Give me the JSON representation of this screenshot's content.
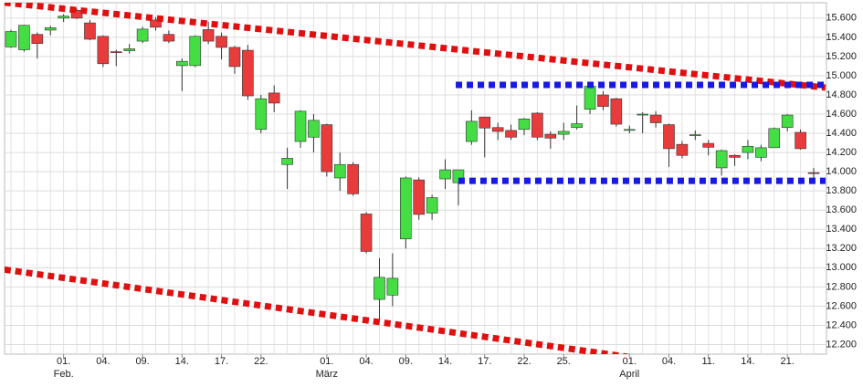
{
  "chart_data": {
    "type": "candlestick",
    "categories": [
      null,
      null,
      null,
      null,
      "01.",
      null,
      null,
      "04.",
      null,
      null,
      "09.",
      null,
      null,
      "14.",
      null,
      null,
      "17.",
      null,
      null,
      "22.",
      null,
      null,
      null,
      null,
      "01.",
      null,
      null,
      "04.",
      null,
      null,
      "09.",
      null,
      null,
      "14.",
      null,
      null,
      "17.",
      null,
      null,
      "22.",
      null,
      null,
      "25.",
      null,
      null,
      null,
      null,
      "01.",
      null,
      null,
      "04.",
      null,
      null,
      "11.",
      null,
      null,
      "14.",
      null,
      null,
      "21.",
      null,
      null
    ],
    "category_groups": [
      null,
      null,
      null,
      null,
      "Feb.",
      null,
      null,
      null,
      null,
      null,
      null,
      null,
      null,
      null,
      null,
      null,
      null,
      null,
      null,
      null,
      null,
      null,
      null,
      null,
      "März",
      null,
      null,
      null,
      null,
      null,
      null,
      null,
      null,
      null,
      null,
      null,
      null,
      null,
      null,
      null,
      null,
      null,
      null,
      null,
      null,
      null,
      null,
      "April",
      null,
      null,
      null,
      null,
      null,
      null,
      null,
      null,
      null,
      null,
      null,
      null,
      null,
      null
    ],
    "open": [
      15300,
      15270,
      15430,
      15475,
      15600,
      15680,
      15550,
      15410,
      15250,
      15260,
      15360,
      15580,
      15430,
      15105,
      15105,
      15480,
      15410,
      15295,
      15265,
      14440,
      14820,
      14075,
      14315,
      14360,
      14490,
      13935,
      14075,
      13560,
      12670,
      12715,
      13300,
      13915,
      13570,
      13925,
      13885,
      14315,
      14570,
      14460,
      14430,
      14440,
      14610,
      14390,
      14390,
      14460,
      14650,
      14800,
      14760,
      14440,
      14590,
      14590,
      14490,
      14285,
      14380,
      14295,
      14040,
      14170,
      14200,
      14150,
      14250,
      14460,
      14410,
      13990
    ],
    "high": [
      15480,
      15530,
      15450,
      15520,
      15640,
      15700,
      15580,
      15420,
      15270,
      15330,
      15510,
      15610,
      15470,
      15180,
      15420,
      15560,
      15450,
      15310,
      15320,
      14800,
      14900,
      14250,
      14640,
      14600,
      14500,
      14200,
      14100,
      13580,
      13100,
      13150,
      13950,
      13940,
      13760,
      14130,
      14020,
      14640,
      14570,
      14510,
      14490,
      14560,
      14620,
      14420,
      14510,
      14690,
      14910,
      14840,
      14770,
      14480,
      14620,
      14630,
      14500,
      14320,
      14430,
      14330,
      14230,
      14180,
      14330,
      14280,
      14460,
      14600,
      14440,
      14040
    ],
    "low": [
      15290,
      15250,
      15180,
      15420,
      15560,
      15590,
      15370,
      15090,
      15100,
      15230,
      15340,
      15470,
      15340,
      14840,
      15090,
      15330,
      15170,
      15020,
      14750,
      14400,
      14620,
      13820,
      14250,
      14200,
      13950,
      13800,
      13750,
      13150,
      12450,
      12600,
      13200,
      13500,
      13500,
      13820,
      13650,
      14280,
      14150,
      14330,
      14330,
      14380,
      14330,
      14240,
      14330,
      14440,
      14600,
      14640,
      14470,
      14400,
      14400,
      14460,
      14050,
      14140,
      14330,
      14170,
      13960,
      14060,
      14130,
      14110,
      14250,
      14420,
      14230,
      13930
    ],
    "close": [
      15460,
      15525,
      15335,
      15500,
      15620,
      15600,
      15380,
      15125,
      15245,
      15280,
      15485,
      15505,
      15360,
      15150,
      15410,
      15360,
      15295,
      15095,
      14790,
      14760,
      14715,
      14140,
      14630,
      14535,
      14000,
      14075,
      13770,
      13170,
      12900,
      12890,
      13935,
      13555,
      13730,
      14020,
      14020,
      14525,
      14455,
      14420,
      14360,
      14550,
      14360,
      14350,
      14420,
      14500,
      14890,
      14680,
      14495,
      14440,
      14600,
      14510,
      14240,
      14170,
      14385,
      14255,
      14220,
      14150,
      14265,
      14250,
      14450,
      14590,
      14240,
      13985
    ],
    "up_color": "#44dd44",
    "down_color": "#e83c3c",
    "lines": [
      {
        "color": "#e01010",
        "x": [
          -0.5,
          61.9
        ],
        "y": [
          15762,
          14876
        ]
      },
      {
        "color": "#e01010",
        "x": [
          -0.5,
          50.6
        ],
        "y": [
          12981,
          12000
        ]
      },
      {
        "color": "#1818e8",
        "x": [
          33.8,
          61.9
        ],
        "y": [
          14905,
          14905
        ]
      },
      {
        "color": "#1818e8",
        "x": [
          34.0,
          61.9
        ],
        "y": [
          13905,
          13905
        ]
      }
    ],
    "ylim": [
      12100,
      15760
    ],
    "yticks": [
      {
        "value": 12200,
        "label": "12.200"
      },
      {
        "value": 12400,
        "label": "12.400"
      },
      {
        "value": 12600,
        "label": "12.600"
      },
      {
        "value": 12800,
        "label": "12.800"
      },
      {
        "value": 13000,
        "label": "13.000"
      },
      {
        "value": 13200,
        "label": "13.200"
      },
      {
        "value": 13400,
        "label": "13.400"
      },
      {
        "value": 13600,
        "label": "13.600"
      },
      {
        "value": 13800,
        "label": "13.800"
      },
      {
        "value": 14000,
        "label": "14.000"
      },
      {
        "value": 14200,
        "label": "14.200"
      },
      {
        "value": 14400,
        "label": "14.400"
      },
      {
        "value": 14600,
        "label": "14.600"
      },
      {
        "value": 14800,
        "label": "14.800"
      },
      {
        "value": 15000,
        "label": "15.000"
      },
      {
        "value": 15200,
        "label": "15.200"
      },
      {
        "value": 15400,
        "label": "15.400"
      },
      {
        "value": 15600,
        "label": "15.600"
      }
    ],
    "grid": true
  }
}
